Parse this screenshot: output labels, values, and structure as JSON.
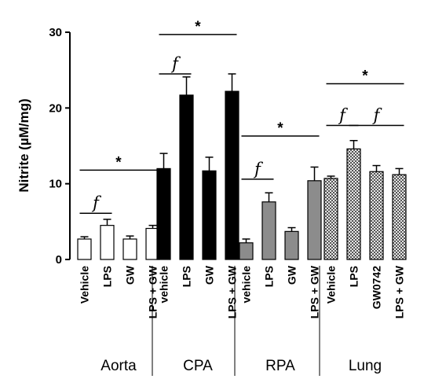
{
  "chart_data": {
    "type": "bar",
    "ylabel": "Nitrite (µM/mg)",
    "ylim": [
      0,
      30
    ],
    "yticks": [
      0,
      10,
      20,
      30
    ],
    "groups": [
      {
        "name": "Aorta",
        "fill": "white",
        "categories": [
          "Vehicle",
          "LPS",
          "GW",
          "LPS + GW"
        ],
        "values": [
          2.7,
          4.5,
          2.7,
          4.1
        ],
        "errors": [
          0.3,
          0.8,
          0.4,
          0.4
        ]
      },
      {
        "name": "CPA",
        "fill": "black",
        "categories": [
          "vehicle",
          "LPS",
          "GW",
          "LPS + GW"
        ],
        "values": [
          12.0,
          21.7,
          11.7,
          22.2
        ],
        "errors": [
          2.0,
          2.4,
          1.8,
          2.3
        ]
      },
      {
        "name": "RPA",
        "fill": "gray",
        "categories": [
          "vehicle",
          "LPS",
          "GW",
          "LPS + GW"
        ],
        "values": [
          2.2,
          7.6,
          3.7,
          10.4
        ],
        "errors": [
          0.5,
          1.2,
          0.5,
          1.8
        ]
      },
      {
        "name": "Lung",
        "fill": "checker",
        "categories": [
          "Vehicle",
          "LPS",
          "GW0742",
          "LPS + GW"
        ],
        "values": [
          10.7,
          14.6,
          11.6,
          11.2
        ],
        "errors": [
          0.3,
          1.1,
          0.8,
          0.8
        ]
      }
    ],
    "annotations": [
      {
        "text": "*",
        "group": 0,
        "from": 0,
        "to": 3,
        "level": 11.8
      },
      {
        "text": "f",
        "group": 0,
        "from": 0,
        "to": 1,
        "level": 6.1
      },
      {
        "text": "*",
        "group": 1,
        "from": 0,
        "to": 3,
        "level": 29.7
      },
      {
        "text": "f",
        "group": 1,
        "from": 0,
        "to": 1,
        "level": 24.5
      },
      {
        "text": "*",
        "group": 2,
        "from": 0,
        "to": 3,
        "level": 16.3
      },
      {
        "text": "f",
        "group": 2,
        "from": 0,
        "to": 1,
        "level": 10.6
      },
      {
        "text": "*",
        "group": 3,
        "from": 0,
        "to": 3,
        "level": 23.2
      },
      {
        "text": "f",
        "group": 3,
        "from": 0,
        "to": 1,
        "level": 17.7
      },
      {
        "text": "f",
        "group": 3,
        "from": 1,
        "to": 3,
        "level": 17.7
      }
    ],
    "colors": {
      "black": "#000000",
      "gray": "#8c8c8c",
      "white": "#ffffff",
      "checker_dark": "#555555",
      "checker_light": "#e6e6e6"
    }
  }
}
